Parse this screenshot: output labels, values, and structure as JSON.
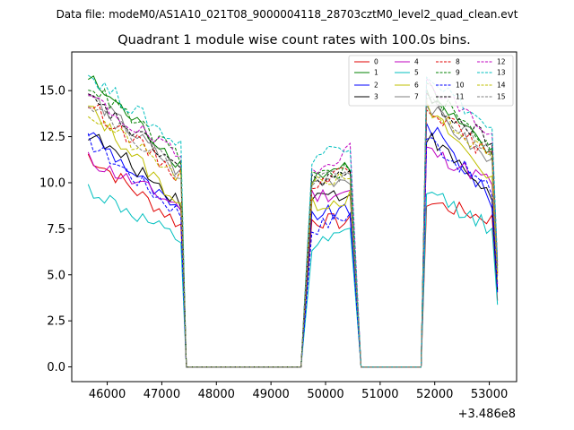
{
  "page": {
    "header": "Data file: modeM0/AS1A10_021T08_9000004118_28703cztM0_level2_quad_clean.evt"
  },
  "chart_data": {
    "type": "line",
    "title": "Quadrant 1 module wise count rates with 100.0s bins.",
    "xlabel": "",
    "ylabel": "",
    "x_offset_label": "+3.486e8",
    "xlim": [
      45350,
      53500
    ],
    "ylim": [
      -0.8,
      17.1
    ],
    "xticks": [
      46000,
      47000,
      48000,
      49000,
      50000,
      51000,
      52000,
      53000
    ],
    "xtick_labels": [
      "46000",
      "47000",
      "48000",
      "49000",
      "50000",
      "51000",
      "52000",
      "53000"
    ],
    "yticks": [
      0.0,
      2.5,
      5.0,
      7.5,
      10.0,
      12.5,
      15.0
    ],
    "ytick_labels": [
      "0.0",
      "2.5",
      "5.0",
      "7.5",
      "10.0",
      "12.5",
      "15.0"
    ],
    "legend_position": "top-right",
    "segments": [
      {
        "start": 45650,
        "end": 47350
      },
      {
        "start": 49750,
        "end": 50450
      },
      {
        "start": 51850,
        "end": 53050
      }
    ],
    "gaps": [
      {
        "from": 47450,
        "to": 49550
      },
      {
        "from": 50650,
        "to": 51750
      }
    ],
    "series": [
      {
        "name": "0",
        "color": "#e00000",
        "dash": "solid",
        "levels": [
          11.5,
          7.7,
          8.0,
          7.8,
          9.0,
          8.0
        ]
      },
      {
        "name": "1",
        "color": "#008000",
        "dash": "solid",
        "levels": [
          15.7,
          11.0,
          10.3,
          11.0,
          14.8,
          11.5
        ]
      },
      {
        "name": "2",
        "color": "#0000ff",
        "dash": "solid",
        "levels": [
          12.8,
          8.2,
          8.3,
          8.4,
          13.3,
          9.0
        ]
      },
      {
        "name": "3",
        "color": "#000000",
        "dash": "solid",
        "levels": [
          12.7,
          9.0,
          9.3,
          9.4,
          12.6,
          9.3
        ]
      },
      {
        "name": "4",
        "color": "#bf00bf",
        "dash": "solid",
        "levels": [
          11.3,
          8.7,
          9.3,
          9.5,
          11.8,
          10.0
        ]
      },
      {
        "name": "5",
        "color": "#00bfbf",
        "dash": "solid",
        "levels": [
          9.7,
          6.8,
          6.4,
          7.3,
          9.6,
          7.5
        ]
      },
      {
        "name": "6",
        "color": "#bfbf00",
        "dash": "solid",
        "levels": [
          14.1,
          8.8,
          8.8,
          9.2,
          14.0,
          10.2
        ]
      },
      {
        "name": "7",
        "color": "#7f7f7f",
        "dash": "solid",
        "levels": [
          14.8,
          10.5,
          10.0,
          10.3,
          14.2,
          11.0
        ]
      },
      {
        "name": "8",
        "color": "#e00000",
        "dash": "dashed",
        "levels": [
          14.3,
          10.3,
          10.0,
          10.8,
          14.3,
          11.3
        ]
      },
      {
        "name": "9",
        "color": "#008000",
        "dash": "dashed",
        "levels": [
          15.4,
          11.3,
          10.4,
          10.7,
          15.2,
          11.8
        ]
      },
      {
        "name": "10",
        "color": "#0000ff",
        "dash": "dashed",
        "levels": [
          12.3,
          8.3,
          7.5,
          8.3,
          12.5,
          9.5
        ]
      },
      {
        "name": "11",
        "color": "#000000",
        "dash": "dashed",
        "levels": [
          14.6,
          10.8,
          10.1,
          10.5,
          14.5,
          12.2
        ]
      },
      {
        "name": "12",
        "color": "#bf00bf",
        "dash": "dashed",
        "levels": [
          14.7,
          11.3,
          10.8,
          11.8,
          15.6,
          12.6
        ]
      },
      {
        "name": "13",
        "color": "#00bfbf",
        "dash": "dashed",
        "levels": [
          15.9,
          12.0,
          11.4,
          12.2,
          16.0,
          12.8
        ]
      },
      {
        "name": "14",
        "color": "#bfbf00",
        "dash": "dashed",
        "levels": [
          13.8,
          10.2,
          9.8,
          10.5,
          14.2,
          11.2
        ]
      },
      {
        "name": "15",
        "color": "#7f7f7f",
        "dash": "dashed",
        "levels": [
          14.5,
          10.5,
          10.1,
          10.6,
          14.6,
          11.6
        ]
      }
    ]
  }
}
